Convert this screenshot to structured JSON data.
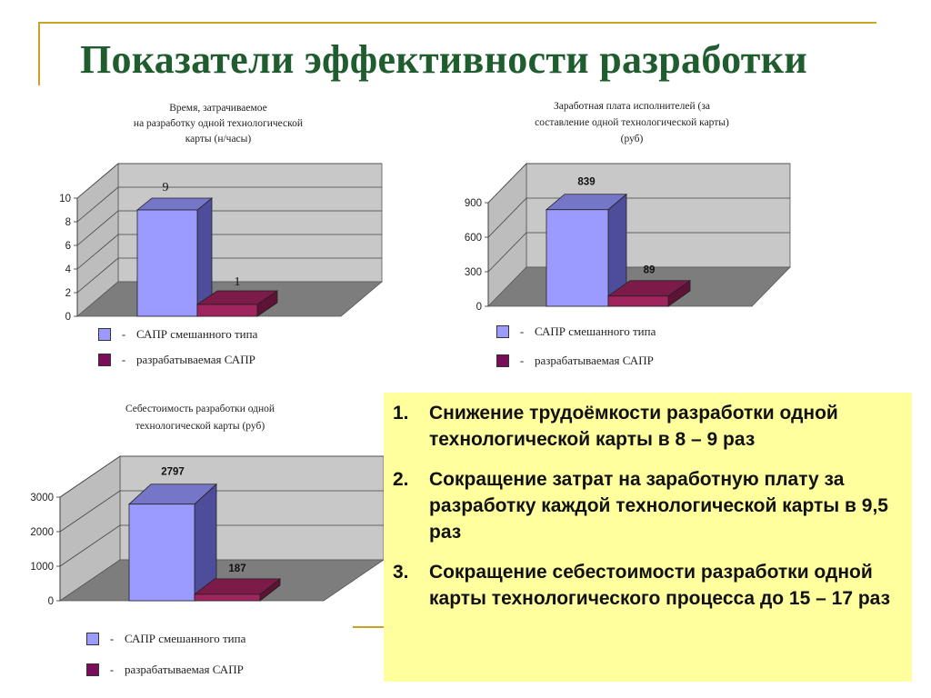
{
  "slide": {
    "title": "Показатели эффективности разработки"
  },
  "legend": {
    "dash": "-",
    "series_a": "САПР смешанного типа",
    "series_b": "разрабатываемая САПР"
  },
  "colors": {
    "series_a_front": "#9a9aff",
    "series_a_side": "#4d4d9c",
    "series_a_top": "#7676c8",
    "series_b_front": "#a0245e",
    "series_b_side": "#5e1236",
    "series_b_top": "#7c1a48",
    "title": "#1f5c2e",
    "notes_bg": "#ffff9e",
    "frame": "#c9a227"
  },
  "chart_data": [
    {
      "type": "bar",
      "title_lines": [
        "Время, затрачиваемое",
        "на разработку одной технологической",
        "карты (н/часы)"
      ],
      "categories": [
        "САПР смешанного типа",
        "разрабатываемая САПР"
      ],
      "values": [
        9,
        1
      ],
      "value_labels": [
        "9",
        "1"
      ],
      "yticks": [
        0,
        2,
        4,
        6,
        8,
        10
      ],
      "ylim": [
        0,
        10
      ],
      "grid": true,
      "legend": "bottom"
    },
    {
      "type": "bar",
      "title_lines": [
        "Заработная плата исполнителей (за",
        "составление одной технологической карты)",
        "(руб)"
      ],
      "categories": [
        "САПР смешанного типа",
        "разрабатываемая САПР"
      ],
      "values": [
        839,
        89
      ],
      "value_labels": [
        "839",
        "89"
      ],
      "yticks": [
        0,
        300,
        600,
        900
      ],
      "ylim": [
        0,
        900
      ],
      "grid": true,
      "legend": "bottom"
    },
    {
      "type": "bar",
      "title_lines": [
        "Себестоимость разработки одной",
        "технологической карты (руб)"
      ],
      "categories": [
        "САПР смешанного типа",
        "разрабатываемая САПР"
      ],
      "values": [
        2797,
        187
      ],
      "value_labels": [
        "2797",
        "187"
      ],
      "yticks": [
        0,
        1000,
        2000,
        3000
      ],
      "ylim": [
        0,
        3000
      ],
      "grid": true,
      "legend": "bottom"
    }
  ],
  "notes": [
    {
      "num": "1.",
      "text": "Снижение трудоёмкости разработки одной технологической карты в 8 – 9 раз"
    },
    {
      "num": "2.",
      "text": "Сокращение затрат на заработную плату за разработку каждой технологической карты в 9,5 раз"
    },
    {
      "num": "3.",
      "text": "Сокращение себестоимости разработки одной карты технологического процесса до 15 – 17 раз"
    }
  ]
}
